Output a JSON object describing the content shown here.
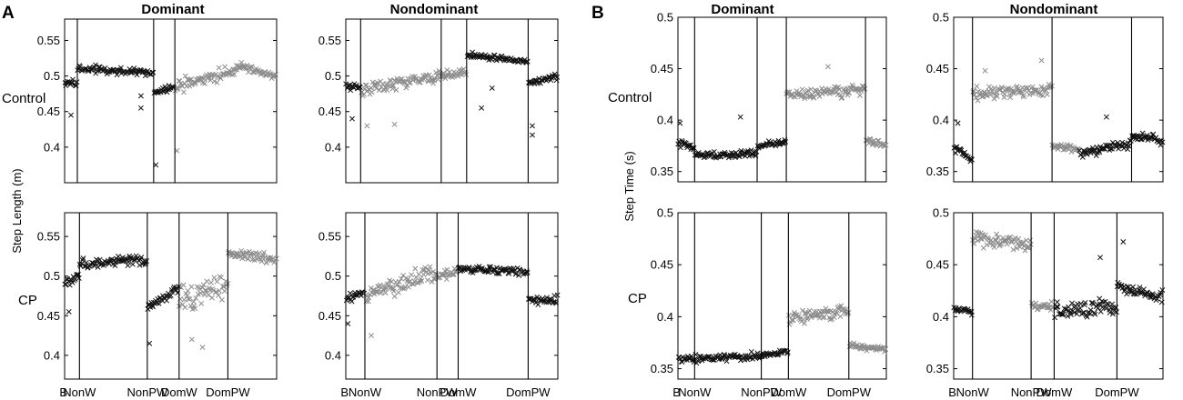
{
  "panel_letters": [
    "A",
    "B"
  ],
  "column_titles": [
    "Dominant",
    "Nondominant",
    "Dominant",
    "Nondominant"
  ],
  "row_labels": [
    "Control",
    "CP",
    "Control",
    "CP"
  ],
  "y_axis_labels": [
    "Step Length (m)",
    "Step Time (s)"
  ],
  "colors": {
    "black_marker": "#111111",
    "gray_marker": "#8c8c8c",
    "axis": "#000000"
  },
  "chart_data": [
    {
      "type": "scatter",
      "panel": "A",
      "group": "Control",
      "limb": "Dominant",
      "ylim": [
        0.35,
        0.58
      ],
      "yticks": [
        0.4,
        0.45,
        0.5,
        0.55
      ],
      "xticklabels": [],
      "phase_boundaries": [
        0.06,
        0.42,
        0.52
      ],
      "phases": [
        {
          "name": "B",
          "start": 0.0,
          "end": 0.06,
          "color": "black",
          "mean_start": 0.49,
          "mean_end": 0.49,
          "spread": 0.006
        },
        {
          "name": "NonW",
          "start": 0.06,
          "end": 0.42,
          "color": "black",
          "mean_start": 0.51,
          "mean_end": 0.505,
          "spread": 0.006
        },
        {
          "name": "NonPW",
          "start": 0.42,
          "end": 0.52,
          "color": "black",
          "mean_start": 0.475,
          "mean_end": 0.485,
          "spread": 0.006
        },
        {
          "name": "DomW",
          "start": 0.52,
          "end": 0.82,
          "color": "gray",
          "mean_start": 0.485,
          "mean_end": 0.51,
          "spread": 0.012
        },
        {
          "name": "DomPW",
          "start": 0.82,
          "end": 1.0,
          "color": "gray",
          "mean_start": 0.515,
          "mean_end": 0.5,
          "spread": 0.007
        }
      ],
      "outliers": [
        [
          0.03,
          0.445
        ],
        [
          0.36,
          0.472
        ],
        [
          0.36,
          0.455
        ],
        [
          0.43,
          0.375
        ],
        [
          0.53,
          0.395
        ]
      ]
    },
    {
      "type": "scatter",
      "panel": "A",
      "group": "Control",
      "limb": "Nondominant",
      "ylim": [
        0.35,
        0.58
      ],
      "yticks": [
        0.4,
        0.45,
        0.5,
        0.55
      ],
      "xticklabels": [],
      "phase_boundaries": [
        0.07,
        0.45,
        0.57,
        0.86
      ],
      "phases": [
        {
          "name": "B",
          "start": 0.0,
          "end": 0.07,
          "color": "black",
          "mean_start": 0.485,
          "mean_end": 0.485,
          "spread": 0.006
        },
        {
          "name": "NonW",
          "start": 0.07,
          "end": 0.45,
          "color": "gray",
          "mean_start": 0.48,
          "mean_end": 0.5,
          "spread": 0.012
        },
        {
          "name": "NonPW",
          "start": 0.45,
          "end": 0.57,
          "color": "gray",
          "mean_start": 0.5,
          "mean_end": 0.505,
          "spread": 0.008
        },
        {
          "name": "DomW",
          "start": 0.57,
          "end": 0.86,
          "color": "black",
          "mean_start": 0.53,
          "mean_end": 0.52,
          "spread": 0.005
        },
        {
          "name": "DomPW",
          "start": 0.86,
          "end": 1.0,
          "color": "black",
          "mean_start": 0.49,
          "mean_end": 0.5,
          "spread": 0.006
        }
      ],
      "outliers": [
        [
          0.03,
          0.44
        ],
        [
          0.1,
          0.43
        ],
        [
          0.23,
          0.432
        ],
        [
          0.64,
          0.455
        ],
        [
          0.69,
          0.483
        ],
        [
          0.88,
          0.43
        ],
        [
          0.88,
          0.417
        ]
      ]
    },
    {
      "type": "scatter",
      "panel": "A",
      "group": "CP",
      "limb": "Dominant",
      "ylim": [
        0.37,
        0.58
      ],
      "yticks": [
        0.4,
        0.45,
        0.5,
        0.55
      ],
      "xticklabels": [
        "B",
        "NonW",
        "NonPW",
        "DomW",
        "DomPW"
      ],
      "phase_boundaries": [
        0.07,
        0.39,
        0.54,
        0.77
      ],
      "phases": [
        {
          "name": "B",
          "start": 0.0,
          "end": 0.07,
          "color": "black",
          "mean_start": 0.49,
          "mean_end": 0.5,
          "spread": 0.008
        },
        {
          "name": "NonW",
          "start": 0.07,
          "end": 0.39,
          "color": "black",
          "mean_start": 0.515,
          "mean_end": 0.52,
          "spread": 0.008
        },
        {
          "name": "NonPW",
          "start": 0.39,
          "end": 0.54,
          "color": "black",
          "mean_start": 0.46,
          "mean_end": 0.485,
          "spread": 0.008
        },
        {
          "name": "DomW",
          "start": 0.54,
          "end": 0.77,
          "color": "gray",
          "mean_start": 0.47,
          "mean_end": 0.49,
          "spread": 0.02
        },
        {
          "name": "DomPW",
          "start": 0.77,
          "end": 1.0,
          "color": "gray",
          "mean_start": 0.53,
          "mean_end": 0.52,
          "spread": 0.008
        }
      ],
      "outliers": [
        [
          0.02,
          0.455
        ],
        [
          0.4,
          0.415
        ],
        [
          0.6,
          0.42
        ],
        [
          0.65,
          0.41
        ]
      ]
    },
    {
      "type": "scatter",
      "panel": "A",
      "group": "CP",
      "limb": "Nondominant",
      "ylim": [
        0.37,
        0.58
      ],
      "yticks": [
        0.4,
        0.45,
        0.5,
        0.55
      ],
      "xticklabels": [
        "B",
        "NonW",
        "NonPW",
        "DomW",
        "DomPW"
      ],
      "phase_boundaries": [
        0.09,
        0.43,
        0.53,
        0.86
      ],
      "phases": [
        {
          "name": "B",
          "start": 0.0,
          "end": 0.09,
          "color": "black",
          "mean_start": 0.47,
          "mean_end": 0.48,
          "spread": 0.006
        },
        {
          "name": "NonW",
          "start": 0.09,
          "end": 0.43,
          "color": "gray",
          "mean_start": 0.475,
          "mean_end": 0.505,
          "spread": 0.014
        },
        {
          "name": "NonPW",
          "start": 0.43,
          "end": 0.53,
          "color": "gray",
          "mean_start": 0.5,
          "mean_end": 0.505,
          "spread": 0.008
        },
        {
          "name": "DomW",
          "start": 0.53,
          "end": 0.86,
          "color": "black",
          "mean_start": 0.51,
          "mean_end": 0.505,
          "spread": 0.006
        },
        {
          "name": "DomPW",
          "start": 0.86,
          "end": 1.0,
          "color": "black",
          "mean_start": 0.47,
          "mean_end": 0.47,
          "spread": 0.007
        }
      ],
      "outliers": [
        [
          0.01,
          0.44
        ],
        [
          0.12,
          0.425
        ]
      ]
    },
    {
      "type": "scatter",
      "panel": "B",
      "group": "Control",
      "limb": "Dominant",
      "ylim": [
        0.34,
        0.5
      ],
      "yticks": [
        0.35,
        0.4,
        0.45,
        0.5
      ],
      "xticklabels": [],
      "phase_boundaries": [
        0.08,
        0.38,
        0.52,
        0.9
      ],
      "phases": [
        {
          "name": "B",
          "start": 0.0,
          "end": 0.08,
          "color": "black",
          "mean_start": 0.378,
          "mean_end": 0.372,
          "spread": 0.005
        },
        {
          "name": "NonW",
          "start": 0.08,
          "end": 0.38,
          "color": "black",
          "mean_start": 0.365,
          "mean_end": 0.368,
          "spread": 0.005
        },
        {
          "name": "NonPW",
          "start": 0.38,
          "end": 0.52,
          "color": "black",
          "mean_start": 0.375,
          "mean_end": 0.378,
          "spread": 0.004
        },
        {
          "name": "DomW",
          "start": 0.52,
          "end": 0.9,
          "color": "gray",
          "mean_start": 0.425,
          "mean_end": 0.43,
          "spread": 0.006
        },
        {
          "name": "DomPW",
          "start": 0.9,
          "end": 1.0,
          "color": "gray",
          "mean_start": 0.38,
          "mean_end": 0.376,
          "spread": 0.004
        }
      ],
      "outliers": [
        [
          0.01,
          0.397
        ],
        [
          0.3,
          0.403
        ],
        [
          0.72,
          0.452
        ]
      ]
    },
    {
      "type": "scatter",
      "panel": "B",
      "group": "Control",
      "limb": "Nondominant",
      "ylim": [
        0.34,
        0.5
      ],
      "yticks": [
        0.35,
        0.4,
        0.45,
        0.5
      ],
      "xticklabels": [],
      "phase_boundaries": [
        0.09,
        0.47,
        0.85
      ],
      "phases": [
        {
          "name": "B",
          "start": 0.0,
          "end": 0.09,
          "color": "black",
          "mean_start": 0.375,
          "mean_end": 0.36,
          "spread": 0.005
        },
        {
          "name": "NonW",
          "start": 0.09,
          "end": 0.47,
          "color": "gray",
          "mean_start": 0.425,
          "mean_end": 0.43,
          "spread": 0.008
        },
        {
          "name": "NonPW",
          "start": 0.47,
          "end": 0.6,
          "color": "gray",
          "mean_start": 0.375,
          "mean_end": 0.373,
          "spread": 0.004
        },
        {
          "name": "DomW",
          "start": 0.6,
          "end": 0.85,
          "color": "black",
          "mean_start": 0.367,
          "mean_end": 0.378,
          "spread": 0.006
        },
        {
          "name": "DomPW",
          "start": 0.85,
          "end": 1.0,
          "color": "black",
          "mean_start": 0.385,
          "mean_end": 0.38,
          "spread": 0.005
        }
      ],
      "outliers": [
        [
          0.02,
          0.397
        ],
        [
          0.15,
          0.448
        ],
        [
          0.42,
          0.458
        ],
        [
          0.73,
          0.403
        ]
      ]
    },
    {
      "type": "scatter",
      "panel": "B",
      "group": "CP",
      "limb": "Dominant",
      "ylim": [
        0.34,
        0.5
      ],
      "yticks": [
        0.35,
        0.4,
        0.45,
        0.5
      ],
      "xticklabels": [
        "B",
        "NonW",
        "NonPW",
        "DomW",
        "DomPW"
      ],
      "phase_boundaries": [
        0.08,
        0.4,
        0.53,
        0.82
      ],
      "phases": [
        {
          "name": "B",
          "start": 0.0,
          "end": 0.08,
          "color": "black",
          "mean_start": 0.36,
          "mean_end": 0.36,
          "spread": 0.005
        },
        {
          "name": "NonW",
          "start": 0.08,
          "end": 0.4,
          "color": "black",
          "mean_start": 0.36,
          "mean_end": 0.362,
          "spread": 0.005
        },
        {
          "name": "NonPW",
          "start": 0.4,
          "end": 0.53,
          "color": "black",
          "mean_start": 0.363,
          "mean_end": 0.367,
          "spread": 0.004
        },
        {
          "name": "DomW",
          "start": 0.53,
          "end": 0.82,
          "color": "gray",
          "mean_start": 0.398,
          "mean_end": 0.405,
          "spread": 0.008
        },
        {
          "name": "DomPW",
          "start": 0.82,
          "end": 1.0,
          "color": "gray",
          "mean_start": 0.372,
          "mean_end": 0.368,
          "spread": 0.004
        }
      ],
      "outliers": []
    },
    {
      "type": "scatter",
      "panel": "B",
      "group": "CP",
      "limb": "Nondominant",
      "ylim": [
        0.34,
        0.5
      ],
      "yticks": [
        0.35,
        0.4,
        0.45,
        0.5
      ],
      "xticklabels": [
        "B",
        "NonW",
        "NonPW",
        "DomW",
        "DomPW"
      ],
      "phase_boundaries": [
        0.09,
        0.37,
        0.48,
        0.78
      ],
      "phases": [
        {
          "name": "B",
          "start": 0.0,
          "end": 0.09,
          "color": "black",
          "mean_start": 0.408,
          "mean_end": 0.405,
          "spread": 0.005
        },
        {
          "name": "NonW",
          "start": 0.09,
          "end": 0.37,
          "color": "gray",
          "mean_start": 0.475,
          "mean_end": 0.47,
          "spread": 0.008
        },
        {
          "name": "NonPW",
          "start": 0.37,
          "end": 0.48,
          "color": "gray",
          "mean_start": 0.41,
          "mean_end": 0.41,
          "spread": 0.005
        },
        {
          "name": "DomW",
          "start": 0.48,
          "end": 0.78,
          "color": "black",
          "mean_start": 0.405,
          "mean_end": 0.41,
          "spread": 0.01
        },
        {
          "name": "DomPW",
          "start": 0.78,
          "end": 1.0,
          "color": "black",
          "mean_start": 0.43,
          "mean_end": 0.418,
          "spread": 0.007
        }
      ],
      "outliers": [
        [
          0.7,
          0.457
        ],
        [
          0.81,
          0.472
        ]
      ]
    }
  ]
}
